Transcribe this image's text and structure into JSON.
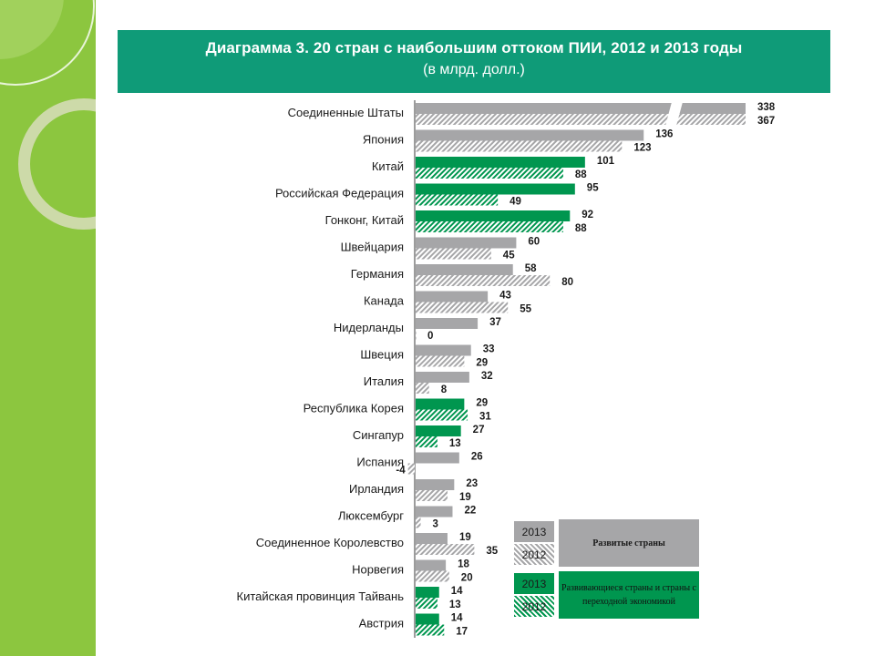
{
  "header": {
    "title": "Диаграмма 3. 20 стран с наибольшим оттоком ПИИ, 2012 и 2013 годы",
    "subtitle": "(в млрд. долл.)"
  },
  "legend": {
    "developed": {
      "y2013": "2013",
      "y2012": "2012",
      "label": "Развитые страны"
    },
    "developing": {
      "y2013": "2013",
      "y2012": "2012",
      "label": "Развивающиеся страны и страны с переходной экономикой"
    }
  },
  "colors": {
    "developed": "#a6a6a8",
    "developing": "#00964f",
    "header": "#0f9b78",
    "sidebar": "#8cc63f"
  },
  "chart_data": {
    "type": "bar",
    "orientation": "horizontal",
    "title": "Диаграмма 3. 20 стран с наибольшим оттоком ПИИ, 2012 и 2013 годы",
    "subtitle": "(в млрд. долл.)",
    "categories": [
      "Соединенные Штаты",
      "Япония",
      "Китай",
      "Российская Федерация",
      "Гонконг, Китай",
      "Швейцария",
      "Германия",
      "Канада",
      "Нидерланды",
      "Швеция",
      "Италия",
      "Республика Корея",
      "Сингапур",
      "Испания",
      "Ирландия",
      "Люксембург",
      "Соединенное Королевство",
      "Норвегия",
      "Китайская провинция Тайвань",
      "Австрия"
    ],
    "group": [
      "developed",
      "developed",
      "developing",
      "developing",
      "developing",
      "developed",
      "developed",
      "developed",
      "developed",
      "developed",
      "developed",
      "developing",
      "developing",
      "developed",
      "developed",
      "developed",
      "developed",
      "developed",
      "developing",
      "developing"
    ],
    "series": [
      {
        "name": "2013",
        "values": [
          338,
          136,
          101,
          95,
          92,
          60,
          58,
          43,
          37,
          33,
          32,
          29,
          27,
          26,
          23,
          22,
          19,
          18,
          14,
          14
        ]
      },
      {
        "name": "2012",
        "values": [
          367,
          123,
          88,
          49,
          88,
          45,
          80,
          55,
          0,
          29,
          8,
          31,
          13,
          -4,
          19,
          3,
          35,
          20,
          13,
          17
        ]
      }
    ],
    "broken_axis_values_above": 150,
    "legend_position": "bottom-right"
  }
}
